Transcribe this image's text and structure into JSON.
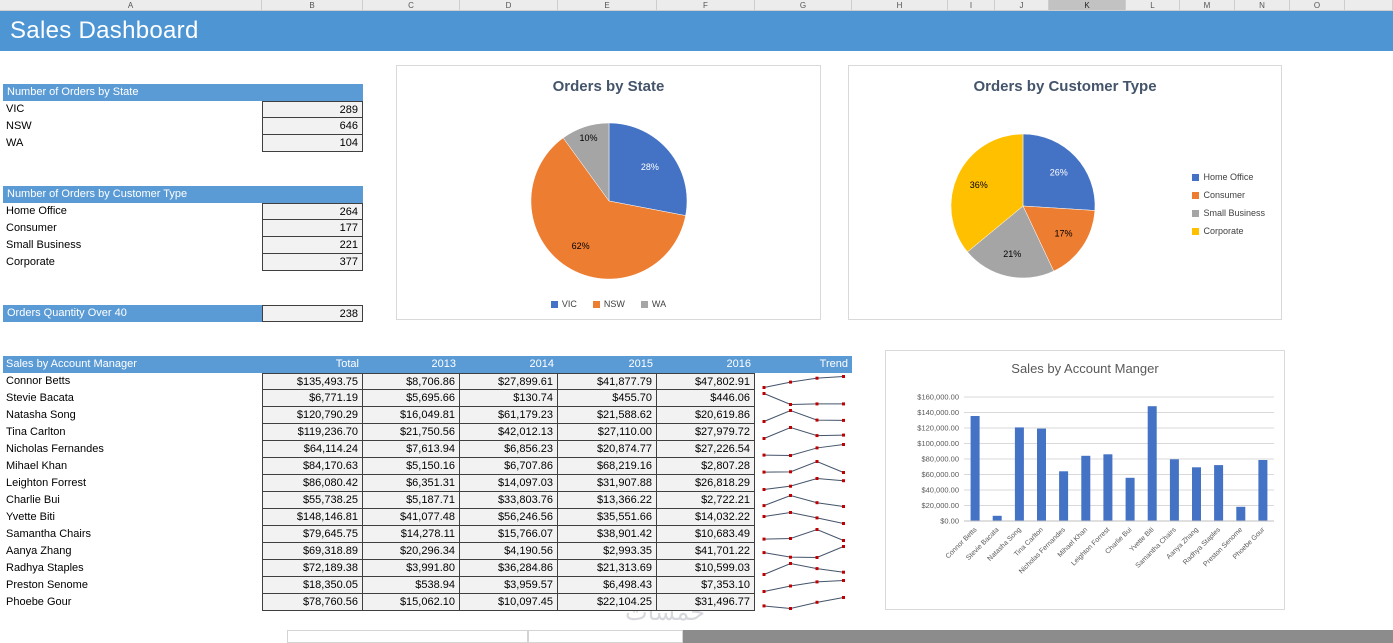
{
  "title_bar": {
    "title": "Sales Dashboard"
  },
  "spreadsheet": {
    "columns": [
      "A",
      "B",
      "C",
      "D",
      "E",
      "F",
      "G",
      "H",
      "I",
      "J",
      "K",
      "L",
      "M",
      "N",
      "O"
    ],
    "selected_column": "K"
  },
  "orders_by_state": {
    "header": "Number of Orders by State",
    "rows": [
      {
        "label": "VIC",
        "value": 289
      },
      {
        "label": "NSW",
        "value": 646
      },
      {
        "label": "WA",
        "value": 104
      }
    ]
  },
  "orders_by_customer_type": {
    "header": "Number of Orders by Customer Type",
    "rows": [
      {
        "label": "Home Office",
        "value": 264
      },
      {
        "label": "Consumer",
        "value": 177
      },
      {
        "label": "Small Business",
        "value": 221
      },
      {
        "label": "Corporate",
        "value": 377
      }
    ]
  },
  "orders_over_40": {
    "label": "Orders Quantity Over 40",
    "value": 238
  },
  "sales_table": {
    "title": "Sales by Account Manager",
    "columns": [
      "Total",
      "2013",
      "2014",
      "2015",
      "2016",
      "Trend"
    ],
    "rows": [
      {
        "name": "Connor Betts",
        "total": 135493.75,
        "years": [
          8706.86,
          27899.61,
          41877.79,
          47802.91
        ]
      },
      {
        "name": "Stevie Bacata",
        "total": 6771.19,
        "years": [
          5695.66,
          130.74,
          455.7,
          446.06
        ]
      },
      {
        "name": "Natasha Song",
        "total": 120790.29,
        "years": [
          16049.81,
          61179.23,
          21588.62,
          20619.86
        ]
      },
      {
        "name": "Tina Carlton",
        "total": 119236.7,
        "years": [
          21750.56,
          42012.13,
          27110.0,
          27979.72
        ]
      },
      {
        "name": "Nicholas Fernandes",
        "total": 64114.24,
        "years": [
          7613.94,
          6856.23,
          20874.77,
          27226.54
        ]
      },
      {
        "name": "Mihael Khan",
        "total": 84170.63,
        "years": [
          5150.16,
          6707.86,
          68219.16,
          2807.28
        ]
      },
      {
        "name": "Leighton Forrest",
        "total": 86080.42,
        "years": [
          6351.31,
          14097.03,
          31907.88,
          26818.29
        ]
      },
      {
        "name": "Charlie Bui",
        "total": 55738.25,
        "years": [
          5187.71,
          33803.76,
          13366.22,
          2722.21
        ]
      },
      {
        "name": "Yvette Biti",
        "total": 148146.81,
        "years": [
          41077.48,
          56246.56,
          35551.66,
          14032.22
        ]
      },
      {
        "name": "Samantha Chairs",
        "total": 79645.75,
        "years": [
          14278.11,
          15766.07,
          38901.42,
          10683.49
        ]
      },
      {
        "name": "Aanya Zhang",
        "total": 69318.89,
        "years": [
          20296.34,
          4190.56,
          2993.35,
          41701.22
        ]
      },
      {
        "name": "Radhya Staples",
        "total": 72189.38,
        "years": [
          3991.8,
          36284.86,
          21313.69,
          10599.03
        ]
      },
      {
        "name": "Preston Senome",
        "total": 18350.05,
        "years": [
          538.94,
          3959.57,
          6498.43,
          7353.1
        ]
      },
      {
        "name": "Phoebe Gour",
        "total": 78760.56,
        "years": [
          15062.1,
          10097.45,
          22104.25,
          31496.77
        ]
      }
    ]
  },
  "chart_data": [
    {
      "type": "pie",
      "title": "Orders by State",
      "labels": [
        "VIC",
        "NSW",
        "WA"
      ],
      "values": [
        28,
        62,
        10
      ],
      "colors": [
        "#4472C4",
        "#ED7D31",
        "#A5A5A5"
      ],
      "value_format": "percent",
      "legend_position": "bottom"
    },
    {
      "type": "pie",
      "title": "Orders by Customer Type",
      "labels": [
        "Home Office",
        "Consumer",
        "Small Business",
        "Corporate"
      ],
      "values": [
        26,
        17,
        21,
        36
      ],
      "colors": [
        "#4472C4",
        "#ED7D31",
        "#A5A5A5",
        "#FFC000"
      ],
      "value_format": "percent",
      "legend_position": "right"
    },
    {
      "type": "bar",
      "title": "Sales by Account Manger",
      "categories": [
        "Connor Betts",
        "Stevie Bacata",
        "Natasha Song",
        "Tina Carlton",
        "Nicholas Fernandes",
        "Mihael Khan",
        "Leighton Forrest",
        "Charlie Bui",
        "Yvette Biti",
        "Samantha Chairs",
        "Aanya Zhang",
        "Radhya Staples",
        "Preston Senome",
        "Phoebe Gour"
      ],
      "values": [
        135493.75,
        6771.19,
        120790.29,
        119236.7,
        64114.24,
        84170.63,
        86080.42,
        55738.25,
        148146.81,
        79645.75,
        69318.89,
        72189.38,
        18350.05,
        78760.56
      ],
      "ylim": [
        0,
        160000
      ],
      "ytick_step": 20000,
      "bar_color": "#4472C4",
      "grid": true,
      "tick_format": "currency",
      "xlabel": "",
      "ylabel": ""
    }
  ],
  "sparkline": {
    "line_color": "#44546A",
    "marker_color": "#C00000"
  },
  "colors": {
    "title_bar": "#4E95D4",
    "section_header": "#5B9BD5",
    "cell_fill": "#f2f2f2"
  },
  "watermark": "خمسات"
}
